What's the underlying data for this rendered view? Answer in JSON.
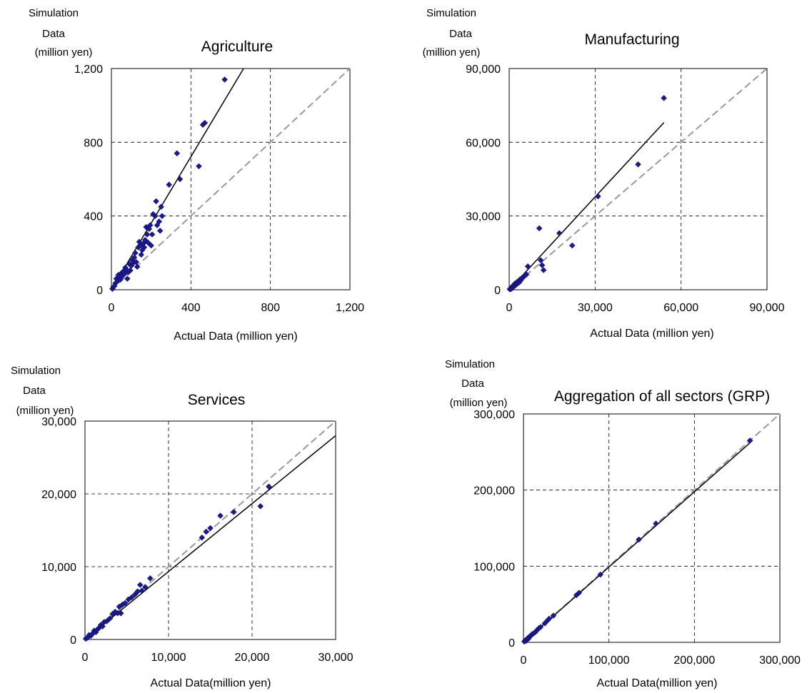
{
  "chart_data": [
    {
      "type": "scatter",
      "title": "Agriculture",
      "xlabel": "Actual Data (million yen)",
      "ylabel": [
        "Simulation",
        "Data",
        "(million yen)"
      ],
      "xlim": [
        0,
        1200
      ],
      "ylim": [
        0,
        1200
      ],
      "xticks": [
        "0",
        "400",
        "800",
        "1,200"
      ],
      "yticks": [
        "0",
        "400",
        "800",
        "1,200"
      ],
      "grid": true,
      "marker_color": "#1a1a8c",
      "reference_line": {
        "label": "y = x",
        "color": "#999999",
        "style": "dashed",
        "from": [
          0,
          0
        ],
        "to": [
          1200,
          1200
        ]
      },
      "fit_line": {
        "color": "#000000",
        "from": [
          0,
          0
        ],
        "to": [
          665,
          1200
        ]
      },
      "points": [
        [
          5,
          5
        ],
        [
          10,
          15
        ],
        [
          15,
          20
        ],
        [
          20,
          35
        ],
        [
          25,
          60
        ],
        [
          30,
          45
        ],
        [
          35,
          80
        ],
        [
          40,
          70
        ],
        [
          45,
          55
        ],
        [
          50,
          90
        ],
        [
          55,
          75
        ],
        [
          60,
          100
        ],
        [
          65,
          85
        ],
        [
          70,
          120
        ],
        [
          75,
          110
        ],
        [
          80,
          60
        ],
        [
          85,
          95
        ],
        [
          90,
          140
        ],
        [
          95,
          105
        ],
        [
          100,
          130
        ],
        [
          105,
          160
        ],
        [
          110,
          145
        ],
        [
          115,
          175
        ],
        [
          120,
          200
        ],
        [
          125,
          150
        ],
        [
          130,
          125
        ],
        [
          135,
          230
        ],
        [
          140,
          260
        ],
        [
          145,
          240
        ],
        [
          150,
          190
        ],
        [
          155,
          215
        ],
        [
          160,
          250
        ],
        [
          165,
          230
        ],
        [
          170,
          270
        ],
        [
          175,
          340
        ],
        [
          180,
          300
        ],
        [
          185,
          255
        ],
        [
          190,
          330
        ],
        [
          195,
          350
        ],
        [
          200,
          240
        ],
        [
          205,
          300
        ],
        [
          210,
          410
        ],
        [
          220,
          400
        ],
        [
          225,
          480
        ],
        [
          230,
          350
        ],
        [
          240,
          370
        ],
        [
          245,
          320
        ],
        [
          250,
          450
        ],
        [
          255,
          400
        ],
        [
          290,
          570
        ],
        [
          330,
          740
        ],
        [
          345,
          600
        ],
        [
          440,
          670
        ],
        [
          460,
          895
        ],
        [
          470,
          905
        ],
        [
          570,
          1140
        ]
      ]
    },
    {
      "type": "scatter",
      "title": "Manufacturing",
      "xlabel": "Actual Data (million yen)",
      "ylabel": [
        "Simulation",
        "Data",
        "(million yen)"
      ],
      "xlim": [
        0,
        90000
      ],
      "ylim": [
        0,
        90000
      ],
      "xticks": [
        "0",
        "30,000",
        "60,000",
        "90,000"
      ],
      "yticks": [
        "0",
        "30,000",
        "60,000",
        "90,000"
      ],
      "grid": true,
      "marker_color": "#1a1a8c",
      "reference_line": {
        "label": "y = x",
        "color": "#999999",
        "style": "dashed",
        "from": [
          0,
          0
        ],
        "to": [
          90000,
          90000
        ]
      },
      "fit_line": {
        "color": "#000000",
        "from": [
          0,
          0
        ],
        "to": [
          54000,
          68000
        ]
      },
      "points": [
        [
          200,
          200
        ],
        [
          400,
          500
        ],
        [
          600,
          300
        ],
        [
          800,
          900
        ],
        [
          1000,
          600
        ],
        [
          1200,
          1500
        ],
        [
          1500,
          1200
        ],
        [
          1800,
          1900
        ],
        [
          2000,
          2500
        ],
        [
          2200,
          1800
        ],
        [
          2500,
          2800
        ],
        [
          2800,
          3200
        ],
        [
          3000,
          2600
        ],
        [
          3200,
          3500
        ],
        [
          3500,
          3000
        ],
        [
          3800,
          4200
        ],
        [
          4000,
          3800
        ],
        [
          4200,
          4500
        ],
        [
          4500,
          4800
        ],
        [
          5000,
          5200
        ],
        [
          5500,
          5800
        ],
        [
          6000,
          6200
        ],
        [
          6500,
          9500
        ],
        [
          10500,
          25000
        ],
        [
          11000,
          12000
        ],
        [
          11500,
          10000
        ],
        [
          12000,
          8000
        ],
        [
          17500,
          23000
        ],
        [
          22000,
          18000
        ],
        [
          31000,
          38000
        ],
        [
          45000,
          51000
        ],
        [
          54000,
          78000
        ]
      ]
    },
    {
      "type": "scatter",
      "title": "Services",
      "xlabel": "Actual Data(million yen)",
      "ylabel": [
        "Simulation",
        "Data",
        "(million yen)"
      ],
      "xlim": [
        0,
        30000
      ],
      "ylim": [
        0,
        30000
      ],
      "xticks": [
        "0",
        "10,000",
        "20,000",
        "30,000"
      ],
      "yticks": [
        "0",
        "10,000",
        "20,000",
        "30,000"
      ],
      "grid": true,
      "marker_color": "#1a1a8c",
      "reference_line": {
        "label": "y = x",
        "color": "#999999",
        "style": "dashed",
        "from": [
          0,
          0
        ],
        "to": [
          30000,
          30000
        ]
      },
      "fit_line": {
        "color": "#000000",
        "from": [
          0,
          0
        ],
        "to": [
          30000,
          28000
        ]
      },
      "points": [
        [
          100,
          100
        ],
        [
          300,
          250
        ],
        [
          500,
          600
        ],
        [
          700,
          500
        ],
        [
          900,
          800
        ],
        [
          1100,
          1200
        ],
        [
          1300,
          1000
        ],
        [
          1500,
          1400
        ],
        [
          1700,
          1600
        ],
        [
          1900,
          2000
        ],
        [
          2100,
          1800
        ],
        [
          2300,
          2400
        ],
        [
          2600,
          2500
        ],
        [
          2800,
          2700
        ],
        [
          3000,
          2900
        ],
        [
          3300,
          3500
        ],
        [
          3600,
          3800
        ],
        [
          3900,
          3600
        ],
        [
          4100,
          4500
        ],
        [
          4300,
          3600
        ],
        [
          4500,
          4800
        ],
        [
          4800,
          5000
        ],
        [
          5200,
          5500
        ],
        [
          5600,
          5800
        ],
        [
          6000,
          6200
        ],
        [
          6300,
          6600
        ],
        [
          6600,
          7500
        ],
        [
          6800,
          6700
        ],
        [
          7200,
          7200
        ],
        [
          7800,
          8400
        ],
        [
          14000,
          14000
        ],
        [
          14500,
          14800
        ],
        [
          15000,
          15300
        ],
        [
          16200,
          17000
        ],
        [
          17800,
          17500
        ],
        [
          21000,
          18300
        ],
        [
          22000,
          21000
        ]
      ]
    },
    {
      "type": "scatter",
      "title": "Aggregation of all sectors (GRP)",
      "xlabel": "Actual Data(million yen)",
      "ylabel": [
        "Simulation",
        "Data",
        "(million yen)"
      ],
      "xlim": [
        0,
        300000
      ],
      "ylim": [
        0,
        300000
      ],
      "xticks": [
        "0",
        "100,000",
        "200,000",
        "300,000"
      ],
      "yticks": [
        "0",
        "100,000",
        "200,000",
        "300,000"
      ],
      "grid": true,
      "marker_color": "#1a1a8c",
      "reference_line": {
        "label": "y = x",
        "color": "#999999",
        "style": "dashed",
        "from": [
          0,
          0
        ],
        "to": [
          300000,
          300000
        ]
      },
      "fit_line": {
        "color": "#000000",
        "from": [
          0,
          0
        ],
        "to": [
          265000,
          262000
        ]
      },
      "points": [
        [
          1000,
          1000
        ],
        [
          2000,
          2500
        ],
        [
          3000,
          2000
        ],
        [
          4000,
          4200
        ],
        [
          5000,
          5500
        ],
        [
          6000,
          5000
        ],
        [
          7000,
          7500
        ],
        [
          8000,
          8200
        ],
        [
          9000,
          9000
        ],
        [
          10000,
          10500
        ],
        [
          12000,
          12000
        ],
        [
          14000,
          13500
        ],
        [
          16000,
          16200
        ],
        [
          18000,
          18500
        ],
        [
          20000,
          20000
        ],
        [
          25000,
          25000
        ],
        [
          28000,
          28500
        ],
        [
          30000,
          31000
        ],
        [
          35000,
          35000
        ],
        [
          62000,
          62000
        ],
        [
          65000,
          65000
        ],
        [
          90000,
          89000
        ],
        [
          135000,
          135000
        ],
        [
          155000,
          156000
        ],
        [
          265000,
          265000
        ]
      ]
    }
  ]
}
